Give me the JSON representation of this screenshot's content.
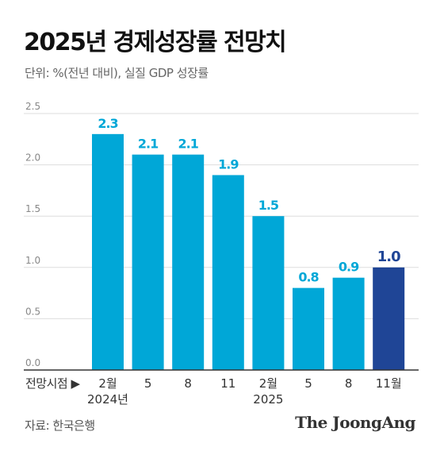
{
  "title": "2025년 경제성장률 전망치",
  "subtitle": "단위: %(전년 대비), 실질 GDP 성장률",
  "source": "자료: 한국은행",
  "brand": "The JoongAng",
  "colors": {
    "bar": "#00a7d7",
    "highlight": "#1f4596",
    "label": "#00a7d7",
    "grid": "#dddddd",
    "axis": "#333333"
  },
  "chart_data": {
    "type": "bar",
    "x_prefix_label": "전망시점 ▶",
    "categories": [
      "2월",
      "5",
      "8",
      "11",
      "2월",
      "5",
      "8",
      "11월"
    ],
    "year_labels": [
      "2024년",
      "",
      "",
      "",
      "2025",
      "",
      "",
      ""
    ],
    "values": [
      2.3,
      2.1,
      2.1,
      1.9,
      1.5,
      0.8,
      0.9,
      1.0
    ],
    "value_labels": [
      "2.3",
      "2.1",
      "2.1",
      "1.9",
      "1.5",
      "0.8",
      "0.9",
      "1.0"
    ],
    "highlight_index": 7,
    "ylim": [
      0,
      2.5
    ],
    "yticks": [
      0.0,
      0.5,
      1.0,
      1.5,
      2.0,
      2.5
    ],
    "ytick_labels": [
      "0.0",
      "0.5",
      "1.0",
      "1.5",
      "2.0",
      "2.5"
    ],
    "grid": true
  }
}
